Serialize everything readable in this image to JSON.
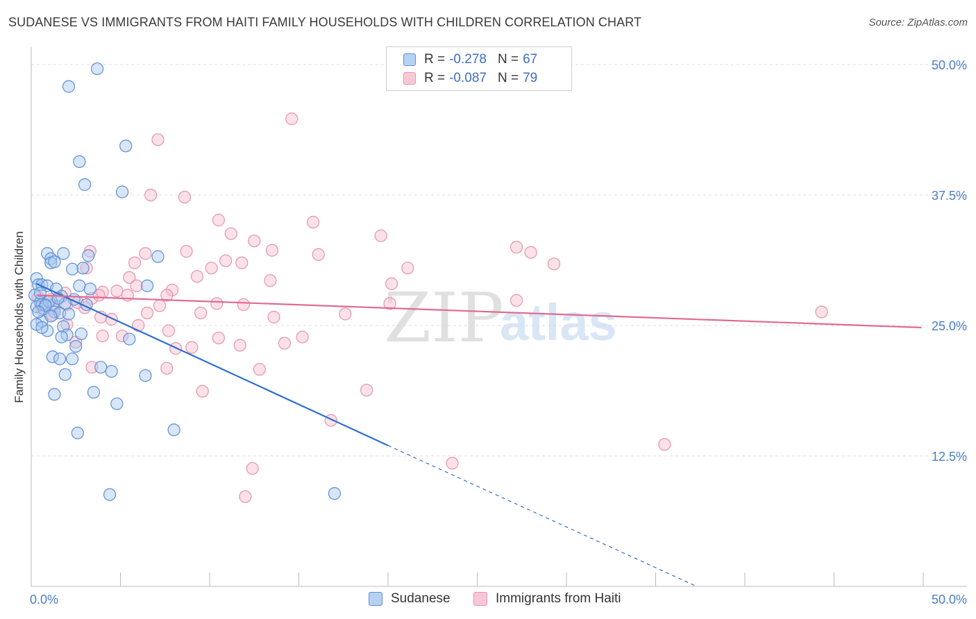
{
  "title": "SUDANESE VS IMMIGRANTS FROM HAITI FAMILY HOUSEHOLDS WITH CHILDREN CORRELATION CHART",
  "source": "Source: ZipAtlas.com",
  "watermark": {
    "zip": "ZIP",
    "atlas": "atlas"
  },
  "legend": {
    "rows": [
      {
        "r_label": "R =",
        "r_value": "-0.278",
        "n_label": "N =",
        "n_value": "67"
      },
      {
        "r_label": "R =",
        "r_value": "-0.087",
        "n_label": "N =",
        "n_value": "79"
      }
    ]
  },
  "bottom_legend": {
    "series1": "Sudanese",
    "series2": "Immigrants from Haiti"
  },
  "colors": {
    "blue_fill": "#a9c8f0",
    "blue_stroke": "#5b8fd6",
    "blue_line": "#2d6fd0",
    "pink_fill": "#f6bccd",
    "pink_stroke": "#e792ae",
    "pink_line": "#e06a93",
    "tick_text": "#4a7cc9",
    "grid": "#dddddd"
  },
  "chart_data": {
    "type": "scatter",
    "title": "SUDANESE VS IMMIGRANTS FROM HAITI FAMILY HOUSEHOLDS WITH CHILDREN CORRELATION CHART",
    "xlabel": "",
    "ylabel": "Family Households with Children",
    "xlim": [
      0,
      50
    ],
    "ylim": [
      0,
      51
    ],
    "x_tick_labels": [
      "0.0%",
      "50.0%"
    ],
    "y_ticks": [
      12.5,
      25.0,
      37.5,
      50.0
    ],
    "y_tick_labels": [
      "12.5%",
      "25.0%",
      "37.5%",
      "50.0%"
    ],
    "series": [
      {
        "name": "Sudanese",
        "points": [
          [
            3.7,
            49.6
          ],
          [
            2.1,
            47.9
          ],
          [
            5.3,
            42.2
          ],
          [
            2.7,
            40.7
          ],
          [
            3.0,
            38.5
          ],
          [
            5.1,
            37.8
          ],
          [
            0.9,
            31.9
          ],
          [
            1.1,
            31.4
          ],
          [
            1.8,
            31.9
          ],
          [
            3.2,
            31.7
          ],
          [
            7.1,
            31.6
          ],
          [
            1.1,
            31.0
          ],
          [
            1.3,
            31.1
          ],
          [
            2.3,
            30.4
          ],
          [
            2.9,
            30.5
          ],
          [
            0.3,
            29.5
          ],
          [
            0.4,
            28.9
          ],
          [
            0.6,
            28.9
          ],
          [
            0.9,
            28.8
          ],
          [
            1.4,
            28.5
          ],
          [
            2.7,
            28.8
          ],
          [
            3.3,
            28.5
          ],
          [
            6.5,
            28.8
          ],
          [
            0.2,
            27.9
          ],
          [
            0.5,
            27.2
          ],
          [
            0.8,
            27.0
          ],
          [
            1.2,
            26.9
          ],
          [
            1.7,
            27.8
          ],
          [
            0.3,
            26.8
          ],
          [
            0.7,
            26.6
          ],
          [
            1.3,
            26.3
          ],
          [
            1.6,
            26.2
          ],
          [
            2.1,
            26.1
          ],
          [
            0.6,
            25.4
          ],
          [
            0.3,
            25.1
          ],
          [
            0.9,
            24.5
          ],
          [
            0.6,
            24.8
          ],
          [
            1.8,
            24.9
          ],
          [
            2.0,
            24.1
          ],
          [
            1.7,
            23.9
          ],
          [
            2.8,
            24.2
          ],
          [
            5.5,
            23.7
          ],
          [
            2.5,
            23.0
          ],
          [
            1.2,
            22.0
          ],
          [
            1.6,
            21.8
          ],
          [
            2.3,
            21.8
          ],
          [
            3.9,
            21.0
          ],
          [
            4.5,
            20.6
          ],
          [
            1.9,
            20.3
          ],
          [
            6.4,
            20.2
          ],
          [
            3.5,
            18.6
          ],
          [
            1.3,
            18.4
          ],
          [
            4.8,
            17.5
          ],
          [
            8.0,
            15.0
          ],
          [
            2.6,
            14.7
          ],
          [
            4.4,
            8.8
          ],
          [
            17.0,
            8.9
          ],
          [
            0.6,
            27.0
          ],
          [
            1.0,
            27.3
          ],
          [
            2.4,
            27.5
          ],
          [
            0.5,
            28.1
          ],
          [
            1.9,
            27.1
          ],
          [
            0.8,
            26.9
          ],
          [
            1.5,
            27.6
          ],
          [
            3.1,
            27.0
          ],
          [
            1.1,
            25.9
          ],
          [
            0.4,
            26.3
          ]
        ],
        "trend": {
          "x0": 0.3,
          "y0": 29.0,
          "x1": 20.0,
          "y1": 13.5,
          "dashed_x1": 37.3,
          "dashed_y1": 0.0
        }
      },
      {
        "name": "Immigrants from Haiti",
        "points": [
          [
            14.6,
            44.8
          ],
          [
            7.1,
            42.8
          ],
          [
            6.7,
            37.5
          ],
          [
            8.6,
            37.3
          ],
          [
            10.5,
            35.1
          ],
          [
            15.8,
            34.9
          ],
          [
            11.2,
            33.8
          ],
          [
            19.6,
            33.6
          ],
          [
            12.5,
            33.1
          ],
          [
            27.2,
            32.5
          ],
          [
            28.0,
            32.0
          ],
          [
            3.3,
            32.1
          ],
          [
            6.4,
            31.9
          ],
          [
            8.7,
            32.1
          ],
          [
            13.5,
            32.2
          ],
          [
            16.1,
            31.8
          ],
          [
            5.8,
            31.0
          ],
          [
            10.9,
            31.2
          ],
          [
            11.8,
            31.0
          ],
          [
            3.1,
            30.5
          ],
          [
            10.1,
            30.5
          ],
          [
            21.1,
            30.5
          ],
          [
            29.3,
            30.9
          ],
          [
            9.3,
            29.7
          ],
          [
            5.5,
            29.6
          ],
          [
            13.4,
            29.3
          ],
          [
            20.2,
            29.0
          ],
          [
            7.9,
            28.4
          ],
          [
            4.0,
            28.2
          ],
          [
            4.8,
            28.3
          ],
          [
            5.4,
            27.9
          ],
          [
            1.9,
            28.1
          ],
          [
            3.4,
            27.6
          ],
          [
            3.8,
            27.9
          ],
          [
            7.6,
            27.9
          ],
          [
            27.2,
            27.4
          ],
          [
            1.1,
            27.5
          ],
          [
            0.4,
            27.7
          ],
          [
            2.0,
            27.0
          ],
          [
            7.2,
            26.9
          ],
          [
            10.4,
            27.1
          ],
          [
            11.9,
            27.0
          ],
          [
            20.1,
            27.1
          ],
          [
            1.3,
            26.6
          ],
          [
            3.0,
            26.7
          ],
          [
            6.5,
            26.2
          ],
          [
            9.5,
            26.2
          ],
          [
            17.6,
            26.1
          ],
          [
            44.3,
            26.3
          ],
          [
            0.6,
            26.5
          ],
          [
            4.5,
            25.6
          ],
          [
            13.6,
            25.8
          ],
          [
            2.0,
            25.1
          ],
          [
            6.0,
            25.0
          ],
          [
            7.7,
            24.5
          ],
          [
            4.0,
            24.0
          ],
          [
            5.1,
            24.0
          ],
          [
            10.5,
            23.8
          ],
          [
            15.2,
            23.9
          ],
          [
            2.5,
            23.4
          ],
          [
            11.7,
            23.1
          ],
          [
            14.2,
            23.3
          ],
          [
            9.0,
            22.9
          ],
          [
            8.1,
            22.8
          ],
          [
            3.4,
            21.0
          ],
          [
            7.6,
            20.9
          ],
          [
            12.8,
            20.8
          ],
          [
            18.8,
            18.8
          ],
          [
            9.6,
            18.7
          ],
          [
            16.8,
            15.9
          ],
          [
            35.5,
            13.6
          ],
          [
            23.6,
            11.8
          ],
          [
            12.4,
            11.3
          ],
          [
            12.0,
            8.6
          ],
          [
            1.2,
            26.0
          ],
          [
            2.6,
            27.2
          ],
          [
            0.8,
            27.3
          ],
          [
            5.9,
            28.8
          ],
          [
            3.9,
            25.8
          ]
        ],
        "trend": {
          "x0": 0.3,
          "y0": 27.9,
          "x1": 49.9,
          "y1": 24.8
        }
      }
    ]
  }
}
